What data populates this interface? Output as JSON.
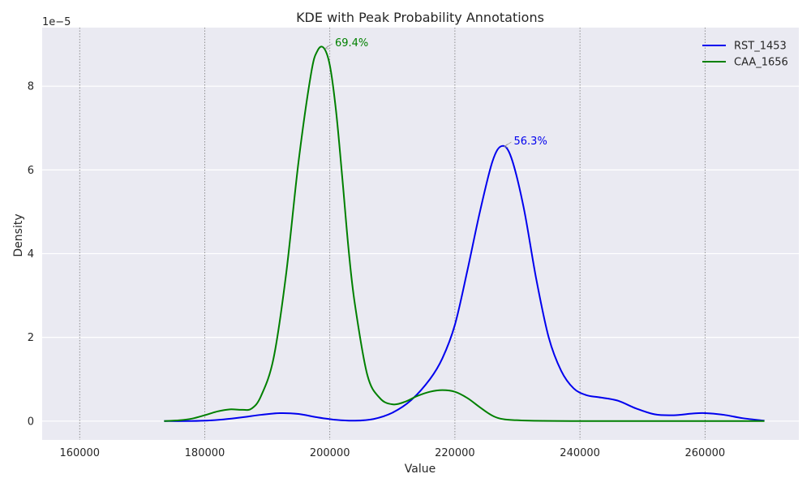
{
  "chart_data": {
    "type": "line",
    "title": "KDE with Peak Probability Annotations",
    "xlabel": "Value",
    "ylabel": "Density",
    "y_scale_label": "1e−5",
    "xlim": [
      154000,
      275000
    ],
    "ylim": [
      -0.45,
      9.4
    ],
    "x_ticks": [
      160000,
      180000,
      200000,
      220000,
      240000,
      260000
    ],
    "x_tick_labels": [
      "160000",
      "180000",
      "200000",
      "220000",
      "240000",
      "260000"
    ],
    "y_ticks": [
      0,
      2,
      4,
      6,
      8
    ],
    "y_tick_labels": [
      "0",
      "2",
      "4",
      "6",
      "8"
    ],
    "x_grid": "dotted vertical",
    "y_grid": "solid horizontal",
    "legend_position": "top-right",
    "series": [
      {
        "name": "RST_1453",
        "color": "#0000ee",
        "x": [
          173500,
          177000,
          180000,
          183000,
          186000,
          189000,
          192000,
          195000,
          198000,
          201000,
          204000,
          207000,
          210000,
          213000,
          216000,
          218000,
          220000,
          222000,
          224000,
          226000,
          227500,
          229000,
          231000,
          233000,
          235000,
          237000,
          239000,
          241000,
          243000,
          246000,
          249000,
          252000,
          255000,
          258000,
          260000,
          263000,
          266000,
          269500
        ],
        "y": [
          0.0,
          0.0,
          0.01,
          0.04,
          0.09,
          0.15,
          0.19,
          0.17,
          0.09,
          0.03,
          0.01,
          0.05,
          0.2,
          0.5,
          1.0,
          1.5,
          2.3,
          3.6,
          5.0,
          6.2,
          6.57,
          6.3,
          5.1,
          3.4,
          2.0,
          1.2,
          0.78,
          0.62,
          0.57,
          0.49,
          0.3,
          0.16,
          0.14,
          0.18,
          0.19,
          0.15,
          0.07,
          0.01
        ]
      },
      {
        "name": "CAA_1656",
        "color": "#008000",
        "x": [
          173500,
          176000,
          178000,
          180000,
          182000,
          184000,
          186000,
          187500,
          189000,
          191000,
          193000,
          195000,
          197000,
          198000,
          199000,
          200000,
          201000,
          202000,
          203000,
          204000,
          206000,
          208000,
          210000,
          212000,
          214000,
          216000,
          218000,
          220000,
          222000,
          224000,
          226000,
          228000,
          232000,
          240000,
          250000,
          260000,
          269500
        ],
        "y": [
          0.0,
          0.02,
          0.06,
          0.14,
          0.23,
          0.28,
          0.27,
          0.3,
          0.6,
          1.5,
          3.5,
          6.2,
          8.3,
          8.84,
          8.92,
          8.5,
          7.4,
          5.8,
          4.1,
          2.8,
          1.1,
          0.55,
          0.4,
          0.46,
          0.6,
          0.7,
          0.74,
          0.7,
          0.55,
          0.33,
          0.13,
          0.04,
          0.01,
          0.0,
          0.0,
          0.0,
          0.0
        ]
      }
    ],
    "annotations": [
      {
        "label": "69.4%",
        "x": 199000,
        "y": 8.92,
        "color": "#008000"
      },
      {
        "label": "56.3%",
        "x": 227600,
        "y": 6.57,
        "color": "#0000ee"
      }
    ]
  }
}
